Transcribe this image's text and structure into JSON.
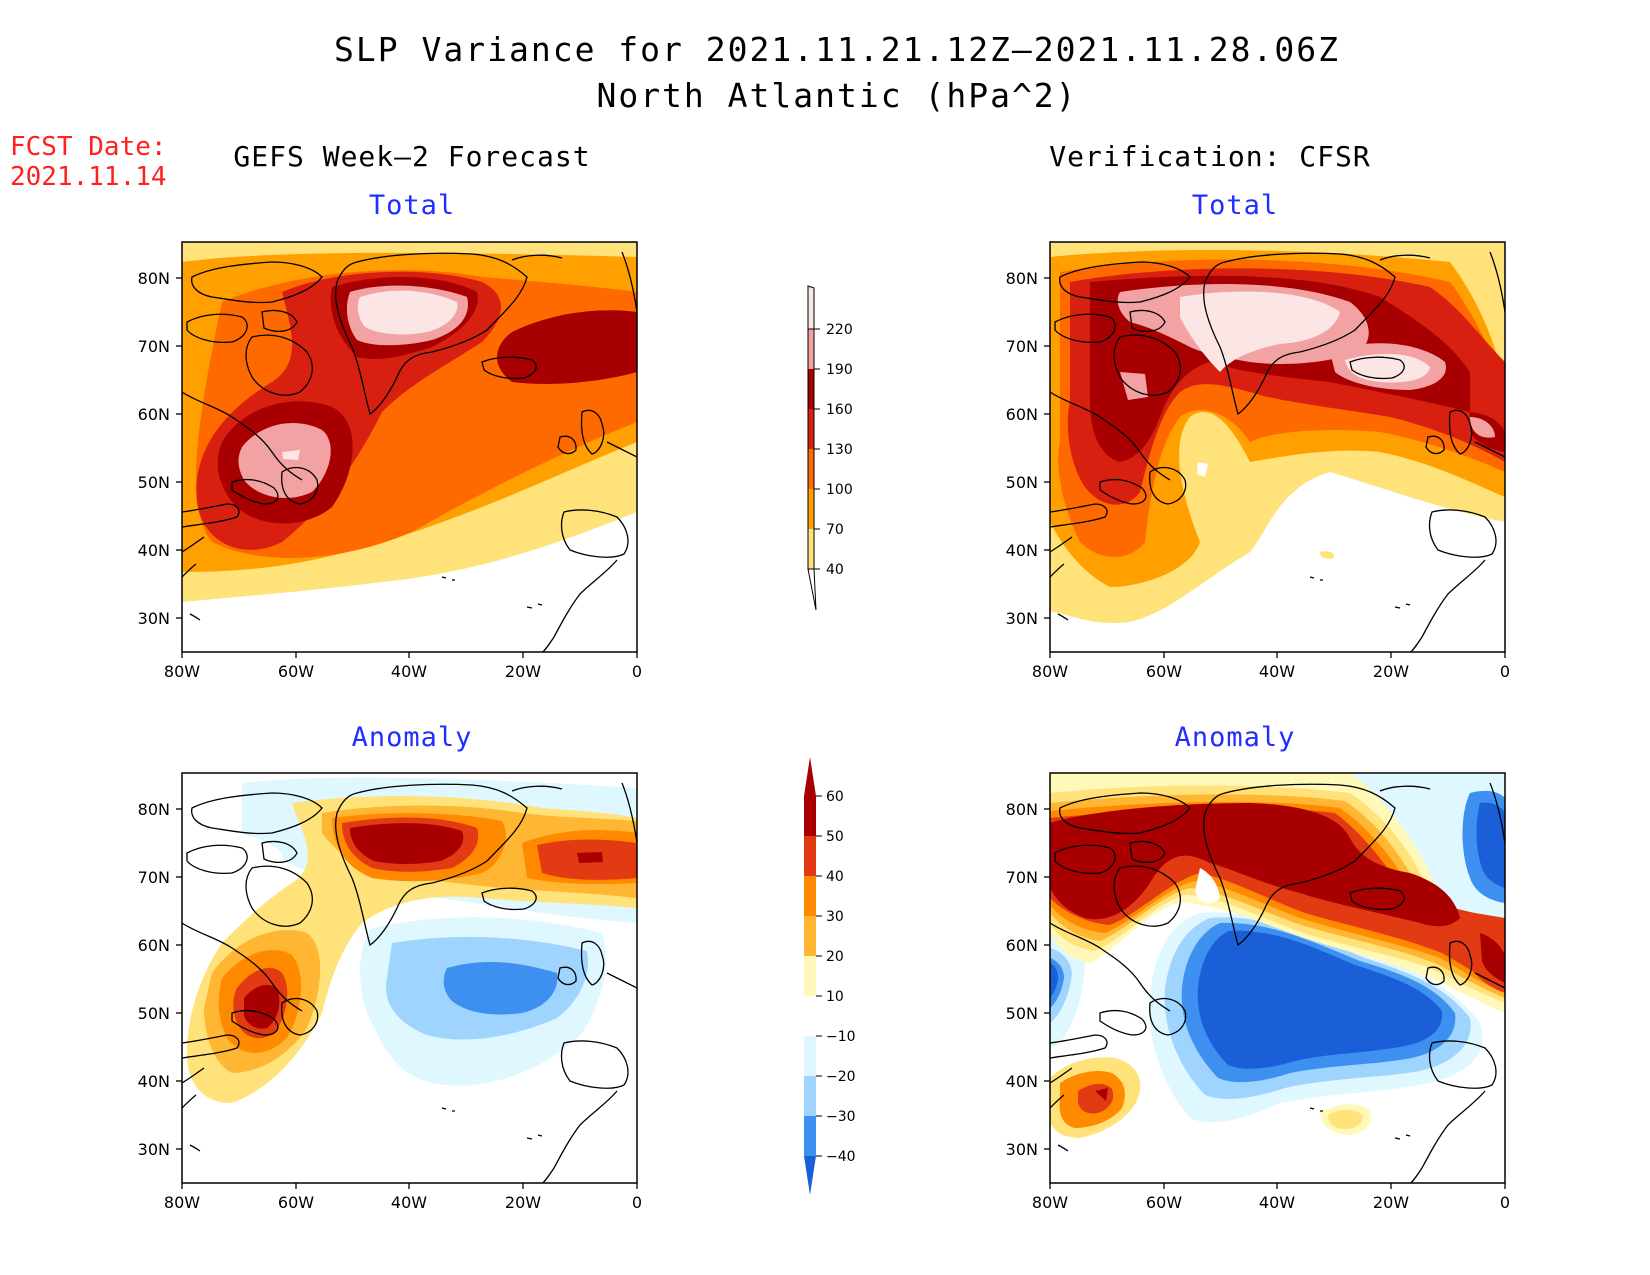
{
  "title": {
    "line1": "SLP Variance for 2021.11.21.12Z–2021.11.28.06Z",
    "line2": "North Atlantic (hPa^2)"
  },
  "fcst": {
    "label": "FCST Date:",
    "date": "2021.11.14"
  },
  "columns": {
    "left": "GEFS Week–2 Forecast",
    "right": "Verification: CFSR"
  },
  "panels": {
    "total_left": "Total",
    "total_right": "Total",
    "anom_left": "Anomaly",
    "anom_right": "Anomaly"
  },
  "axes": {
    "x_ticks": [
      "80W",
      "60W",
      "40W",
      "20W",
      "0"
    ],
    "y_ticks": [
      "80N",
      "70N",
      "60N",
      "50N",
      "40N",
      "30N"
    ]
  },
  "colorbars": {
    "total": {
      "levels": [
        "220",
        "190",
        "160",
        "130",
        "100",
        "70",
        "40"
      ],
      "colors": [
        "#fbe5e5",
        "#f2a2a2",
        "#a80000",
        "#d82010",
        "#ff6a00",
        "#ffa000",
        "#ffe27a"
      ]
    },
    "anomaly": {
      "levels": [
        "60",
        "50",
        "40",
        "30",
        "20",
        "10",
        "−10",
        "−20",
        "−30",
        "−40"
      ],
      "colors": [
        "#a80000",
        "#a80000",
        "#e23a12",
        "#ff8a00",
        "#ffb733",
        "#ffe27a",
        "#fff8b8",
        "#ffffff",
        "#dff7ff",
        "#9fd4ff",
        "#3d8ff0",
        "#1a5fd8"
      ]
    }
  },
  "colors": {
    "fcst_text": "#ff2020",
    "subtitle_blue": "#1f2fff"
  }
}
